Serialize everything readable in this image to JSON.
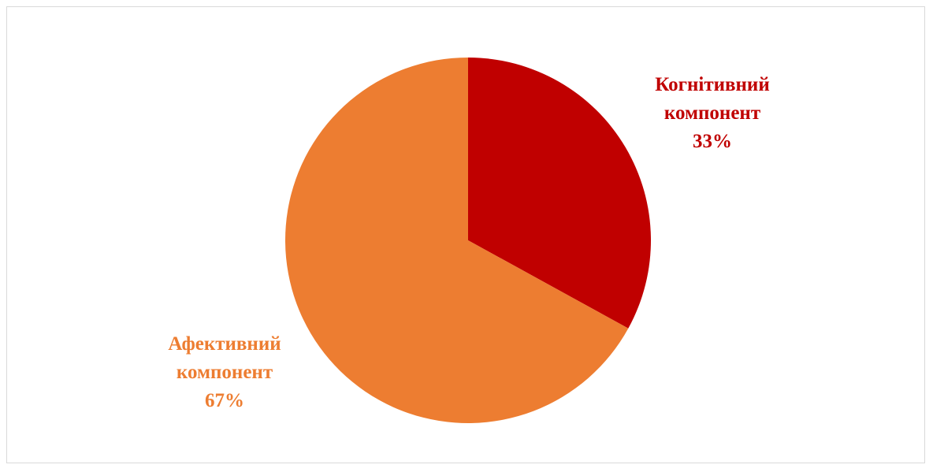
{
  "chart_data": {
    "type": "pie",
    "categories": [
      "Когнітивний компонент",
      "Афективний компонент"
    ],
    "values": [
      33,
      67
    ],
    "value_labels": [
      "33%",
      "67%"
    ],
    "colors": [
      "#c00000",
      "#ed7d31"
    ]
  }
}
